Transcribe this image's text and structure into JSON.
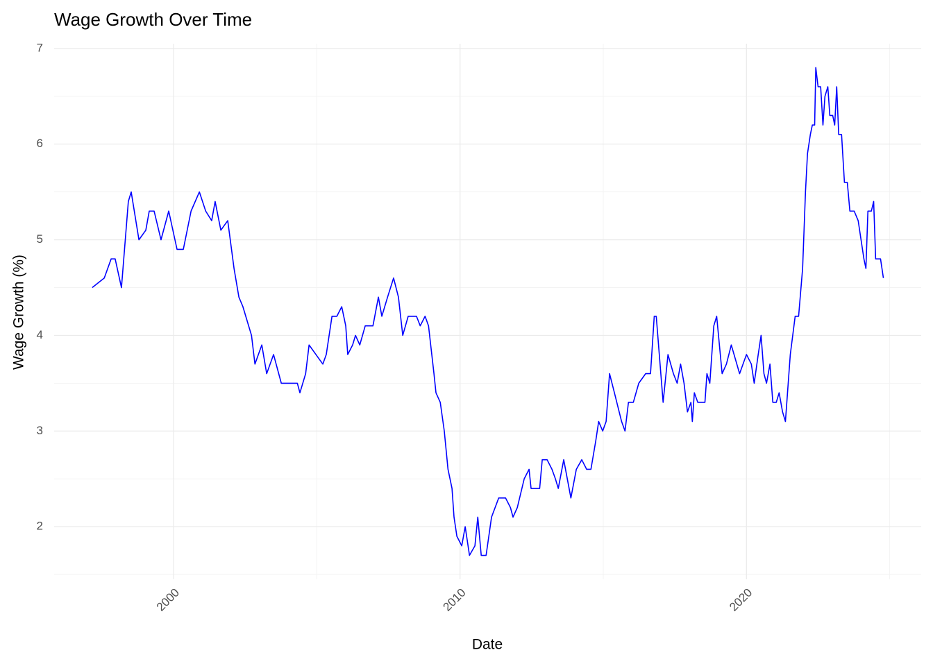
{
  "chart_data": {
    "type": "line",
    "title": "Wage Growth Over Time",
    "x_label": "Date",
    "y_label": "Wage Growth (%)",
    "x": [
      1997.16,
      1997.58,
      1997.82,
      1997.96,
      1998.18,
      1998.42,
      1998.52,
      1998.79,
      1999.03,
      1999.15,
      1999.32,
      1999.56,
      1999.83,
      2000.12,
      2000.34,
      2000.61,
      2000.9,
      2001.12,
      2001.33,
      2001.45,
      2001.65,
      2001.89,
      2002.11,
      2002.28,
      2002.42,
      2002.72,
      2002.84,
      2003.08,
      2003.25,
      2003.49,
      2003.76,
      2004.32,
      2004.41,
      2004.61,
      2004.73,
      2004.97,
      2005.21,
      2005.33,
      2005.53,
      2005.7,
      2005.87,
      2006.01,
      2006.08,
      2006.25,
      2006.35,
      2006.5,
      2006.69,
      2006.96,
      2007.15,
      2007.27,
      2007.47,
      2007.68,
      2007.85,
      2008.0,
      2008.19,
      2008.48,
      2008.61,
      2008.78,
      2008.9,
      2009.09,
      2009.16,
      2009.31,
      2009.45,
      2009.58,
      2009.72,
      2009.79,
      2009.89,
      2010.06,
      2010.18,
      2010.33,
      2010.52,
      2010.62,
      2010.74,
      2010.91,
      2011.1,
      2011.35,
      2011.59,
      2011.76,
      2011.85,
      2012.0,
      2012.24,
      2012.41,
      2012.48,
      2012.78,
      2012.87,
      2013.04,
      2013.21,
      2013.33,
      2013.43,
      2013.62,
      2013.87,
      2014.06,
      2014.25,
      2014.42,
      2014.57,
      2014.74,
      2014.84,
      2014.98,
      2015.1,
      2015.22,
      2015.39,
      2015.64,
      2015.76,
      2015.88,
      2016.05,
      2016.24,
      2016.48,
      2016.65,
      2016.78,
      2016.85,
      2017.09,
      2017.26,
      2017.45,
      2017.58,
      2017.7,
      2017.82,
      2017.94,
      2018.06,
      2018.11,
      2018.18,
      2018.3,
      2018.55,
      2018.62,
      2018.72,
      2018.86,
      2018.96,
      2019.15,
      2019.3,
      2019.47,
      2019.76,
      2020.0,
      2020.17,
      2020.27,
      2020.41,
      2020.51,
      2020.61,
      2020.7,
      2020.82,
      2020.92,
      2021.04,
      2021.14,
      2021.26,
      2021.36,
      2021.53,
      2021.7,
      2021.82,
      2021.96,
      2022.06,
      2022.13,
      2022.23,
      2022.3,
      2022.38,
      2022.42,
      2022.5,
      2022.59,
      2022.67,
      2022.74,
      2022.84,
      2022.91,
      2023.01,
      2023.08,
      2023.15,
      2023.22,
      2023.32,
      2023.42,
      2023.52,
      2023.61,
      2023.76,
      2023.9,
      2024.0,
      2024.1,
      2024.17,
      2024.24,
      2024.36,
      2024.44,
      2024.51,
      2024.68,
      2024.78
    ],
    "series": [
      {
        "color": "#0000ff",
        "values": [
          4.5,
          4.6,
          4.8,
          4.8,
          4.5,
          5.4,
          5.5,
          5.0,
          5.1,
          5.3,
          5.3,
          5.0,
          5.3,
          4.9,
          4.9,
          5.3,
          5.5,
          5.3,
          5.2,
          5.4,
          5.1,
          5.2,
          4.7,
          4.4,
          4.3,
          4.0,
          3.7,
          3.9,
          3.6,
          3.8,
          3.5,
          3.5,
          3.4,
          3.6,
          3.9,
          3.8,
          3.7,
          3.8,
          4.2,
          4.2,
          4.3,
          4.1,
          3.8,
          3.9,
          4.0,
          3.9,
          4.1,
          4.1,
          4.4,
          4.2,
          4.4,
          4.6,
          4.4,
          4.0,
          4.2,
          4.2,
          4.1,
          4.2,
          4.1,
          3.6,
          3.4,
          3.3,
          3.0,
          2.6,
          2.4,
          2.1,
          1.9,
          1.8,
          2.0,
          1.7,
          1.8,
          2.1,
          1.7,
          1.7,
          2.1,
          2.3,
          2.3,
          2.2,
          2.1,
          2.2,
          2.5,
          2.6,
          2.4,
          2.4,
          2.7,
          2.7,
          2.6,
          2.5,
          2.4,
          2.7,
          2.3,
          2.6,
          2.7,
          2.6,
          2.6,
          2.9,
          3.1,
          3.0,
          3.1,
          3.6,
          3.4,
          3.1,
          3.0,
          3.3,
          3.3,
          3.5,
          3.6,
          3.6,
          4.2,
          4.2,
          3.3,
          3.8,
          3.6,
          3.5,
          3.7,
          3.5,
          3.2,
          3.3,
          3.1,
          3.4,
          3.3,
          3.3,
          3.6,
          3.5,
          4.1,
          4.2,
          3.6,
          3.7,
          3.9,
          3.6,
          3.8,
          3.7,
          3.5,
          3.8,
          4.0,
          3.6,
          3.5,
          3.7,
          3.3,
          3.3,
          3.4,
          3.2,
          3.1,
          3.8,
          4.2,
          4.2,
          4.7,
          5.5,
          5.9,
          6.1,
          6.2,
          6.2,
          6.8,
          6.6,
          6.6,
          6.2,
          6.5,
          6.6,
          6.3,
          6.3,
          6.2,
          6.6,
          6.1,
          6.1,
          5.6,
          5.6,
          5.3,
          5.3,
          5.2,
          5.0,
          4.8,
          4.7,
          5.3,
          5.3,
          5.4,
          4.8,
          4.8,
          4.6
        ]
      }
    ],
    "xlim": [
      1995.83,
      2026.1
    ],
    "xticks": [
      2000,
      2010,
      2020
    ],
    "ylim": [
      1.45,
      7.05
    ],
    "yticks": [
      2,
      3,
      4,
      5,
      6,
      7
    ],
    "grid": true
  }
}
